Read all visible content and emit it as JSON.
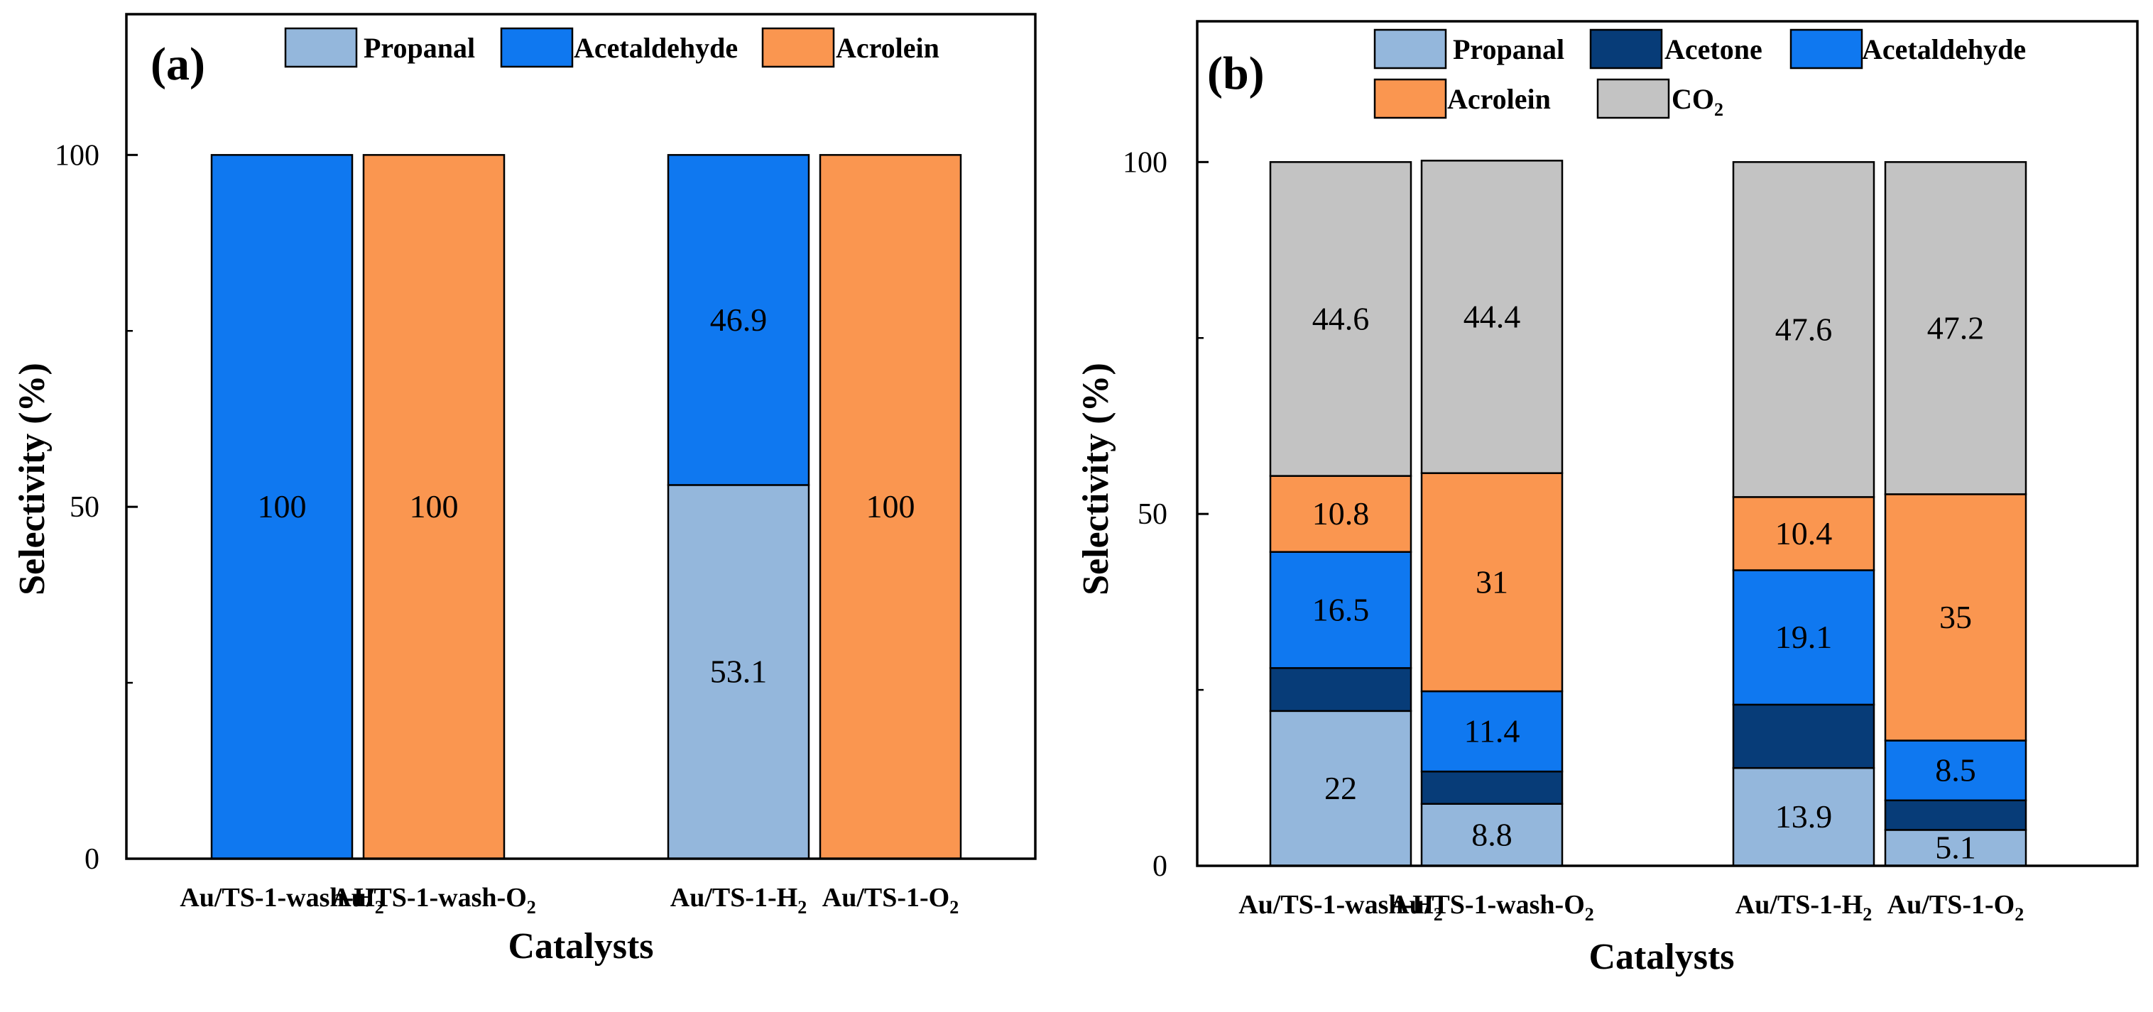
{
  "chart_data": [
    {
      "type": "bar",
      "stacked": true,
      "panel_label": "(a)",
      "title": "",
      "xlabel": "Catalysts",
      "ylabel": "Selectivity (%)",
      "ylim": [
        0,
        120
      ],
      "yticks": [
        0,
        50,
        100
      ],
      "legend_position": "top",
      "categories": [
        {
          "base": "Au/TS-1-wash-H",
          "sub": "2"
        },
        {
          "base": "Au/TS-1-wash-O",
          "sub": "2"
        },
        {
          "base": "Au/TS-1-H",
          "sub": "2"
        },
        {
          "base": "Au/TS-1-O",
          "sub": "2"
        }
      ],
      "series": [
        {
          "name": "Propanal",
          "color": "#94b7dc",
          "values": [
            0,
            0,
            53.1,
            0
          ],
          "labels": [
            "",
            "",
            "53.1",
            ""
          ]
        },
        {
          "name": "Acetaldehyde",
          "color": "#0f78f0",
          "values": [
            100,
            0,
            46.9,
            0
          ],
          "labels": [
            "100",
            "",
            "46.9",
            ""
          ]
        },
        {
          "name": "Acrolein",
          "color": "#fa9650",
          "values": [
            0,
            100,
            0,
            100
          ],
          "labels": [
            "",
            "100",
            "",
            "100"
          ]
        }
      ]
    },
    {
      "type": "bar",
      "stacked": true,
      "panel_label": "(b)",
      "title": "",
      "xlabel": "Catalysts",
      "ylabel": "Selectivity (%)",
      "ylim": [
        0,
        120
      ],
      "yticks": [
        0,
        50,
        100
      ],
      "legend_position": "top",
      "categories": [
        {
          "base": "Au/TS-1-wash-H",
          "sub": "2"
        },
        {
          "base": "Au/TS-1-wash-O",
          "sub": "2"
        },
        {
          "base": "Au/TS-1-H",
          "sub": "2"
        },
        {
          "base": "Au/TS-1-O",
          "sub": "2"
        }
      ],
      "series": [
        {
          "name": "Propanal",
          "color": "#94b7dc",
          "values": [
            22,
            8.8,
            13.9,
            5.1
          ],
          "labels": [
            "22",
            "8.8",
            "13.9",
            "5.1"
          ]
        },
        {
          "name": "Acetone",
          "color": "#073c78",
          "values": [
            6.1,
            4.6,
            9.0,
            4.2
          ],
          "labels": [
            "",
            "",
            "",
            ""
          ]
        },
        {
          "name": "Acetaldehyde",
          "color": "#0f78f0",
          "values": [
            16.5,
            11.4,
            19.1,
            8.5
          ],
          "labels": [
            "16.5",
            "11.4",
            "19.1",
            "8.5"
          ]
        },
        {
          "name": "Acrolein",
          "color": "#fa9650",
          "values": [
            10.8,
            31,
            10.4,
            35
          ],
          "labels": [
            "10.8",
            "31",
            "10.4",
            "35"
          ]
        },
        {
          "name": "CO",
          "name_sub": "2",
          "color": "#c3c3c3",
          "values": [
            44.6,
            44.4,
            47.6,
            47.2
          ],
          "labels": [
            "44.6",
            "44.4",
            "47.6",
            "47.2"
          ]
        }
      ]
    }
  ]
}
